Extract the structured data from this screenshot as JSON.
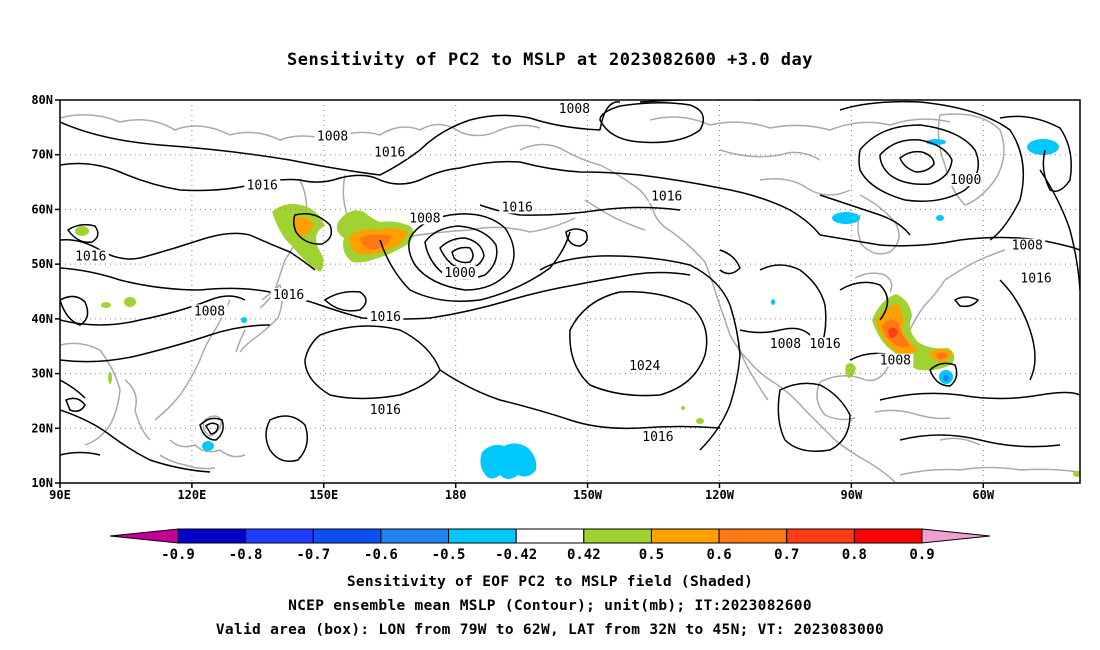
{
  "title": "Sensitivity of PC2 to MSLP at 2023082600 +3.0 day",
  "map": {
    "lat_labels": [
      "80N",
      "70N",
      "60N",
      "50N",
      "40N",
      "30N",
      "20N",
      "10N"
    ],
    "lon_labels": [
      "90E",
      "120E",
      "150E",
      "180",
      "150W",
      "120W",
      "90W",
      "60W"
    ],
    "lat_range": [
      10,
      80
    ],
    "lon_range_east": [
      90,
      322
    ],
    "contour_labels": [
      {
        "text": "1008",
        "lon": 152,
        "lat": 73
      },
      {
        "text": "1016",
        "lon": 136,
        "lat": 64
      },
      {
        "text": "1016",
        "lon": 165,
        "lat": 70
      },
      {
        "text": "1008",
        "lon": 207,
        "lat": 78
      },
      {
        "text": "1016",
        "lon": 194,
        "lat": 60
      },
      {
        "text": "1016",
        "lon": 228,
        "lat": 62
      },
      {
        "text": "1000",
        "lon": 296,
        "lat": 65
      },
      {
        "text": "1008",
        "lon": 310,
        "lat": 53
      },
      {
        "text": "1016",
        "lon": 312,
        "lat": 47
      },
      {
        "text": "1016",
        "lon": 97,
        "lat": 51
      },
      {
        "text": "1008",
        "lon": 173,
        "lat": 58
      },
      {
        "text": "1000",
        "lon": 181,
        "lat": 48
      },
      {
        "text": "1016",
        "lon": 142,
        "lat": 44
      },
      {
        "text": "1016",
        "lon": 164,
        "lat": 40
      },
      {
        "text": "1008",
        "lon": 124,
        "lat": 41
      },
      {
        "text": "1024",
        "lon": 223,
        "lat": 31
      },
      {
        "text": "1008",
        "lon": 255,
        "lat": 35
      },
      {
        "text": "1016",
        "lon": 264,
        "lat": 35
      },
      {
        "text": "1008",
        "lon": 280,
        "lat": 32
      },
      {
        "text": "1016",
        "lon": 164,
        "lat": 23
      },
      {
        "text": "1016",
        "lon": 226,
        "lat": 18
      }
    ],
    "valid_box": {
      "lon_min": 281,
      "lon_max": 298,
      "lat_min": 32,
      "lat_max": 45
    }
  },
  "colorbar": {
    "labels": [
      "-0.9",
      "-0.8",
      "-0.7",
      "-0.6",
      "-0.5",
      "-0.42",
      "0.42",
      "0.5",
      "0.6",
      "0.7",
      "0.8",
      "0.9"
    ],
    "colors": [
      "#c20095",
      "#0000c8",
      "#1e3cff",
      "#0a50f0",
      "#1e82f0",
      "#00c8ff",
      "#ffffff",
      "#a0d232",
      "#ffa000",
      "#ff7814",
      "#ff3c14",
      "#ff0000",
      "#f0a0d0"
    ]
  },
  "captions": {
    "line1": "Sensitivity of EOF PC2 to MSLP field (Shaded)",
    "line2": "NCEP ensemble mean MSLP (Contour); unit(mb); IT:2023082600",
    "line3": "Valid area (box): LON from 79W to 62W, LAT from 32N to 45N; VT: 2023083000"
  }
}
